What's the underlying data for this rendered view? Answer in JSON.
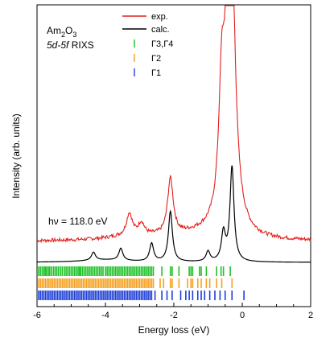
{
  "chart_data": {
    "type": "line",
    "xlabel": "Energy loss (eV)",
    "ylabel": "Intensity (arb. units)",
    "xlim": [
      -6,
      2
    ],
    "x_ticks": [
      -6,
      -4,
      -2,
      0,
      2
    ],
    "x_tick_labels": [
      "-6",
      "-4",
      "-2",
      "0",
      "2"
    ],
    "y_ticks": "none",
    "grid": false,
    "legend_position": "top-center",
    "annotations": {
      "compound": "Am2O3",
      "method_italic": "5d-5f",
      "method_suffix": " RIXS",
      "photon_energy": "hν = 118.0 eV"
    },
    "series": [
      {
        "name": "exp.",
        "color": "#e0201c",
        "description_peaks": [
          {
            "x": -3.3,
            "height": 0.11
          },
          {
            "x": -2.95,
            "height": 0.06
          },
          {
            "x": -2.1,
            "height": 0.28
          },
          {
            "x": -0.6,
            "height": 0.58
          },
          {
            "x": -0.35,
            "height": 2.0
          }
        ],
        "baseline": 0.1
      },
      {
        "name": "calc.",
        "color": "#000000",
        "description_peaks": [
          {
            "x": -4.35,
            "height": 0.04
          },
          {
            "x": -3.55,
            "height": 0.06
          },
          {
            "x": -2.65,
            "height": 0.09
          },
          {
            "x": -2.1,
            "height": 0.25
          },
          {
            "x": -1.0,
            "height": 0.05
          },
          {
            "x": -0.55,
            "height": 0.14
          },
          {
            "x": -0.3,
            "height": 0.47
          }
        ],
        "baseline": 0.0
      }
    ],
    "stick_series": [
      {
        "name": "Γ3,Γ4",
        "color": "#22c12a",
        "sticks": [
          -5.95,
          -5.9,
          -5.85,
          -5.8,
          -5.76,
          -5.72,
          -5.67,
          -5.63,
          -5.58,
          -5.52,
          -5.47,
          -5.42,
          -5.37,
          -5.31,
          -5.26,
          -5.2,
          -5.15,
          -5.1,
          -5.05,
          -5.0,
          -4.95,
          -4.9,
          -4.85,
          -4.8,
          -4.76,
          -4.72,
          -4.67,
          -4.62,
          -4.57,
          -4.52,
          -4.47,
          -4.42,
          -4.37,
          -4.32,
          -4.27,
          -4.22,
          -4.17,
          -4.12,
          -4.07,
          -4.0,
          -3.95,
          -3.9,
          -3.85,
          -3.8,
          -3.75,
          -3.7,
          -3.65,
          -3.6,
          -3.55,
          -3.5,
          -3.45,
          -3.4,
          -3.35,
          -3.3,
          -3.25,
          -3.2,
          -3.15,
          -3.1,
          -3.05,
          -3.0,
          -2.95,
          -2.9,
          -2.85,
          -2.8,
          -2.75,
          -2.7,
          -2.65,
          -2.6,
          -2.35,
          -2.1,
          -2.05,
          -1.85,
          -1.55,
          -1.5,
          -1.45,
          -1.25,
          -1.2,
          -1.05,
          -0.75,
          -0.62,
          -0.55,
          -0.35
        ]
      },
      {
        "name": "Γ2",
        "color": "#f5a020",
        "sticks": [
          -5.95,
          -5.9,
          -5.85,
          -5.8,
          -5.75,
          -5.7,
          -5.65,
          -5.6,
          -5.55,
          -5.5,
          -5.45,
          -5.4,
          -5.35,
          -5.3,
          -5.25,
          -5.2,
          -5.15,
          -5.1,
          -5.05,
          -5.0,
          -4.95,
          -4.9,
          -4.85,
          -4.8,
          -4.75,
          -4.7,
          -4.65,
          -4.6,
          -4.55,
          -4.5,
          -4.45,
          -4.4,
          -4.35,
          -4.3,
          -4.25,
          -4.2,
          -4.15,
          -4.1,
          -4.05,
          -4.0,
          -3.95,
          -3.9,
          -3.85,
          -3.8,
          -3.75,
          -3.7,
          -3.65,
          -3.6,
          -3.55,
          -3.5,
          -3.45,
          -3.4,
          -3.35,
          -3.3,
          -3.25,
          -3.2,
          -3.15,
          -3.1,
          -3.05,
          -3.0,
          -2.95,
          -2.9,
          -2.85,
          -2.8,
          -2.75,
          -2.7,
          -2.65,
          -2.6,
          -2.4,
          -2.3,
          -2.1,
          -2.05,
          -1.85,
          -1.6,
          -1.5,
          -1.45,
          -1.3,
          -1.2,
          -1.05,
          -0.95,
          -0.75,
          -0.6,
          -0.3
        ]
      },
      {
        "name": "Γ1",
        "color": "#1e3fd8",
        "sticks": [
          -5.95,
          -5.9,
          -5.85,
          -5.8,
          -5.75,
          -5.7,
          -5.65,
          -5.6,
          -5.55,
          -5.5,
          -5.45,
          -5.4,
          -5.35,
          -5.3,
          -5.25,
          -5.2,
          -5.15,
          -5.1,
          -5.05,
          -5.0,
          -4.95,
          -4.9,
          -4.85,
          -4.8,
          -4.75,
          -4.7,
          -4.65,
          -4.6,
          -4.55,
          -4.5,
          -4.45,
          -4.4,
          -4.35,
          -4.3,
          -4.25,
          -4.2,
          -4.15,
          -4.1,
          -4.05,
          -4.0,
          -3.95,
          -3.9,
          -3.85,
          -3.8,
          -3.75,
          -3.7,
          -3.65,
          -3.6,
          -3.55,
          -3.5,
          -3.45,
          -3.4,
          -3.35,
          -3.3,
          -3.25,
          -3.2,
          -3.15,
          -3.1,
          -3.05,
          -3.0,
          -2.95,
          -2.9,
          -2.85,
          -2.8,
          -2.75,
          -2.7,
          -2.65,
          -2.55,
          -2.35,
          -2.2,
          -2.05,
          -1.8,
          -1.65,
          -1.55,
          -1.45,
          -1.3,
          -1.2,
          -1.1,
          -0.95,
          -0.8,
          -0.65,
          -0.5,
          -0.3,
          0.05
        ]
      }
    ]
  }
}
